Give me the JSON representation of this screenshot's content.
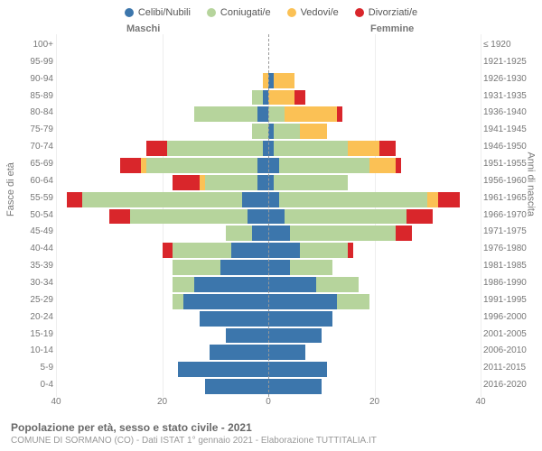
{
  "legend": [
    {
      "label": "Celibi/Nubili",
      "color": "#3c76ac"
    },
    {
      "label": "Coniugati/e",
      "color": "#b6d49c"
    },
    {
      "label": "Vedovi/e",
      "color": "#fbc155"
    },
    {
      "label": "Divorziati/e",
      "color": "#d9262b"
    }
  ],
  "gender": {
    "male": "Maschi",
    "female": "Femmine"
  },
  "yaxis_left": "Fasce di età",
  "yaxis_right": "Anni di nascita",
  "x_max": 40,
  "x_ticks": [
    40,
    20,
    0,
    20,
    40
  ],
  "colors": {
    "celibi": "#3c76ac",
    "coniugati": "#b6d49c",
    "vedovi": "#fbc155",
    "divorziati": "#d9262b",
    "grid": "#eeeeee",
    "center": "#999999",
    "text": "#777777"
  },
  "rows": [
    {
      "age": "100+",
      "birth": "≤ 1920",
      "m": [
        0,
        0,
        0,
        0
      ],
      "f": [
        0,
        0,
        0,
        0
      ]
    },
    {
      "age": "95-99",
      "birth": "1921-1925",
      "m": [
        0,
        0,
        0,
        0
      ],
      "f": [
        0,
        0,
        0,
        0
      ]
    },
    {
      "age": "90-94",
      "birth": "1926-1930",
      "m": [
        0,
        0,
        1,
        0
      ],
      "f": [
        1,
        0,
        4,
        0
      ]
    },
    {
      "age": "85-89",
      "birth": "1931-1935",
      "m": [
        1,
        2,
        0,
        0
      ],
      "f": [
        0,
        0,
        5,
        2
      ]
    },
    {
      "age": "80-84",
      "birth": "1936-1940",
      "m": [
        2,
        12,
        0,
        0
      ],
      "f": [
        0,
        3,
        10,
        1
      ]
    },
    {
      "age": "75-79",
      "birth": "1941-1945",
      "m": [
        0,
        3,
        0,
        0
      ],
      "f": [
        1,
        5,
        5,
        0
      ]
    },
    {
      "age": "70-74",
      "birth": "1946-1950",
      "m": [
        1,
        18,
        0,
        4
      ],
      "f": [
        1,
        14,
        6,
        3
      ]
    },
    {
      "age": "65-69",
      "birth": "1951-1955",
      "m": [
        2,
        21,
        1,
        4
      ],
      "f": [
        2,
        17,
        5,
        1
      ]
    },
    {
      "age": "60-64",
      "birth": "1956-1960",
      "m": [
        2,
        10,
        1,
        5
      ],
      "f": [
        1,
        14,
        0,
        0
      ]
    },
    {
      "age": "55-59",
      "birth": "1961-1965",
      "m": [
        5,
        30,
        0,
        3
      ],
      "f": [
        2,
        28,
        2,
        4
      ]
    },
    {
      "age": "50-54",
      "birth": "1966-1970",
      "m": [
        4,
        22,
        0,
        4
      ],
      "f": [
        3,
        23,
        0,
        5
      ]
    },
    {
      "age": "45-49",
      "birth": "1971-1975",
      "m": [
        3,
        5,
        0,
        0
      ],
      "f": [
        4,
        20,
        0,
        3
      ]
    },
    {
      "age": "40-44",
      "birth": "1976-1980",
      "m": [
        7,
        11,
        0,
        2
      ],
      "f": [
        6,
        9,
        0,
        1
      ]
    },
    {
      "age": "35-39",
      "birth": "1981-1985",
      "m": [
        9,
        9,
        0,
        0
      ],
      "f": [
        4,
        8,
        0,
        0
      ]
    },
    {
      "age": "30-34",
      "birth": "1986-1990",
      "m": [
        14,
        4,
        0,
        0
      ],
      "f": [
        9,
        8,
        0,
        0
      ]
    },
    {
      "age": "25-29",
      "birth": "1991-1995",
      "m": [
        16,
        2,
        0,
        0
      ],
      "f": [
        13,
        6,
        0,
        0
      ]
    },
    {
      "age": "20-24",
      "birth": "1996-2000",
      "m": [
        13,
        0,
        0,
        0
      ],
      "f": [
        12,
        0,
        0,
        0
      ]
    },
    {
      "age": "15-19",
      "birth": "2001-2005",
      "m": [
        8,
        0,
        0,
        0
      ],
      "f": [
        10,
        0,
        0,
        0
      ]
    },
    {
      "age": "10-14",
      "birth": "2006-2010",
      "m": [
        11,
        0,
        0,
        0
      ],
      "f": [
        7,
        0,
        0,
        0
      ]
    },
    {
      "age": "5-9",
      "birth": "2011-2015",
      "m": [
        17,
        0,
        0,
        0
      ],
      "f": [
        11,
        0,
        0,
        0
      ]
    },
    {
      "age": "0-4",
      "birth": "2016-2020",
      "m": [
        12,
        0,
        0,
        0
      ],
      "f": [
        10,
        0,
        0,
        0
      ]
    }
  ],
  "footer": {
    "title": "Popolazione per età, sesso e stato civile - 2021",
    "sub": "COMUNE DI SORMANO (CO) - Dati ISTAT 1° gennaio 2021 - Elaborazione TUTTITALIA.IT"
  }
}
